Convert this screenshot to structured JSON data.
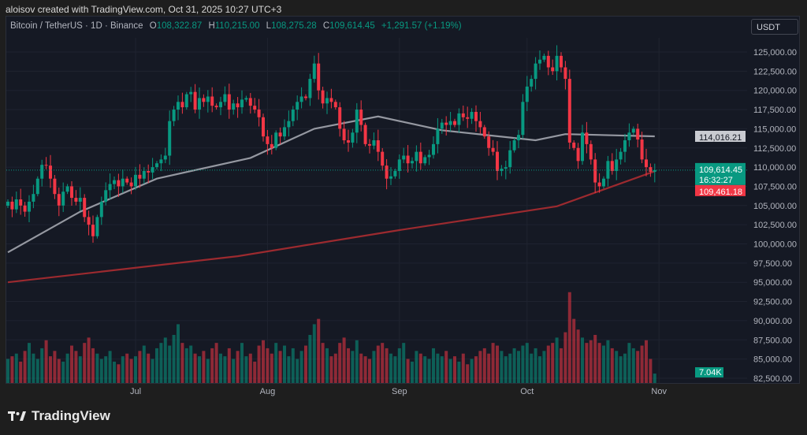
{
  "header": {
    "credit": "aloisov created with TradingView.com, Oct 31, 2025 10:27 UTC+3"
  },
  "legend": {
    "symbol": "Bitcoin / TetherUS · 1D · Binance",
    "o_label": "O",
    "o": "108,322.87",
    "h_label": "H",
    "h": "110,215.00",
    "l_label": "L",
    "l": "108,275.28",
    "c_label": "C",
    "c": "109,614.45",
    "change": "+1,291.57 (+1.19%)"
  },
  "currency": "USDT",
  "footer": {
    "brand": "TradingView"
  },
  "colors": {
    "up": "#089981",
    "down": "#f23645",
    "ma50": "#9598a1",
    "ma200": "#9c2a2f",
    "background": "#151924"
  },
  "chart_data": {
    "type": "candlestick",
    "start_date": "2025-06-01",
    "interval": "1D",
    "closes": [
      105500,
      104500,
      105800,
      105000,
      104200,
      105500,
      106500,
      108500,
      110300,
      110200,
      108500,
      106500,
      105000,
      106800,
      107500,
      106000,
      105500,
      106000,
      103500,
      102500,
      101000,
      103500,
      105500,
      107000,
      107800,
      108300,
      107500,
      108500,
      108000,
      107500,
      109000,
      108500,
      109500,
      109300,
      110000,
      110500,
      111000,
      111500,
      116000,
      117500,
      118500,
      117800,
      119500,
      119800,
      117500,
      119000,
      118500,
      119200,
      118000,
      117800,
      118500,
      119500,
      117500,
      118300,
      117800,
      118800,
      119000,
      118000,
      117500,
      116500,
      114000,
      113000,
      112500,
      114500,
      114000,
      115200,
      116000,
      117500,
      118500,
      119200,
      119000,
      121500,
      123500,
      120000,
      118300,
      119000,
      118500,
      117800,
      115000,
      113500,
      113200,
      114500,
      117500,
      115500,
      113000,
      112800,
      113500,
      112000,
      110200,
      108500,
      108800,
      109500,
      111000,
      111500,
      110500,
      110800,
      112000,
      110500,
      111300,
      111600,
      113000,
      115000,
      115800,
      115500,
      116000,
      115500,
      117000,
      116500,
      116300,
      117200,
      116000,
      115200,
      114000,
      112500,
      112000,
      109500,
      109800,
      110000,
      112200,
      113500,
      114200,
      118500,
      120500,
      121500,
      123500,
      124000,
      124500,
      123000,
      122500,
      124500,
      123000,
      121500,
      113200,
      112500,
      110800,
      114500,
      113000,
      111000,
      108000,
      107500,
      108500,
      110800,
      109500,
      111000,
      112000,
      113500,
      114500,
      115000,
      113600,
      111000,
      110000,
      109400,
      109614.45
    ],
    "volumes_k": [
      18,
      20,
      22,
      16,
      24,
      30,
      22,
      18,
      26,
      32,
      20,
      24,
      18,
      16,
      22,
      28,
      24,
      20,
      30,
      34,
      26,
      22,
      18,
      20,
      24,
      16,
      14,
      20,
      22,
      18,
      20,
      24,
      28,
      22,
      18,
      26,
      30,
      34,
      28,
      36,
      44,
      30,
      26,
      28,
      22,
      20,
      24,
      18,
      26,
      30,
      22,
      20,
      26,
      18,
      24,
      30,
      20,
      22,
      16,
      28,
      32,
      26,
      22,
      30,
      24,
      28,
      20,
      26,
      18,
      24,
      28,
      36,
      44,
      48,
      30,
      26,
      20,
      22,
      30,
      34,
      26,
      24,
      32,
      22,
      20,
      18,
      24,
      28,
      30,
      26,
      22,
      20,
      26,
      30,
      18,
      16,
      24,
      22,
      20,
      18,
      26,
      22,
      20,
      24,
      18,
      20,
      16,
      22,
      14,
      18,
      20,
      24,
      26,
      22,
      30,
      28,
      24,
      20,
      22,
      26,
      24,
      28,
      30,
      22,
      26,
      20,
      24,
      28,
      30,
      34,
      26,
      38,
      68,
      48,
      40,
      34,
      30,
      32,
      36,
      30,
      28,
      32,
      26,
      24,
      20,
      22,
      30,
      26,
      24,
      28,
      32,
      18,
      7.04
    ],
    "ma50": [
      [
        "2025-06-01",
        98900
      ],
      [
        "2025-06-18",
        104200
      ],
      [
        "2025-07-06",
        108500
      ],
      [
        "2025-07-28",
        111200
      ],
      [
        "2025-08-12",
        115000
      ],
      [
        "2025-08-27",
        116600
      ],
      [
        "2025-09-11",
        114800
      ],
      [
        "2025-10-03",
        113500
      ],
      [
        "2025-10-10",
        114300
      ],
      [
        "2025-10-31",
        114016.21
      ]
    ],
    "ma200": [
      [
        "2025-06-01",
        95000
      ],
      [
        "2025-07-25",
        98400
      ],
      [
        "2025-09-01",
        101800
      ],
      [
        "2025-10-08",
        104900
      ],
      [
        "2025-10-31",
        109461.18
      ]
    ],
    "x_ticks": [
      "Jul",
      "Aug",
      "Sep",
      "Oct",
      "Nov"
    ],
    "y_ticks": [
      "125,000.00",
      "122,500.00",
      "120,000.00",
      "117,500.00",
      "115,000.00",
      "112,500.00",
      "110,000.00",
      "107,500.00",
      "105,000.00",
      "102,500.00",
      "100,000.00",
      "97,500.00",
      "95,000.00",
      "92,500.00",
      "90,000.00",
      "87,500.00",
      "85,000.00",
      "82,500.00"
    ],
    "ylim": [
      82500,
      125000
    ],
    "last_price": "109,614.45",
    "countdown": "16:32:27",
    "ma50_label": "114,016.21",
    "ma200_label": "109,461.18",
    "volume_label": "7.04K"
  }
}
